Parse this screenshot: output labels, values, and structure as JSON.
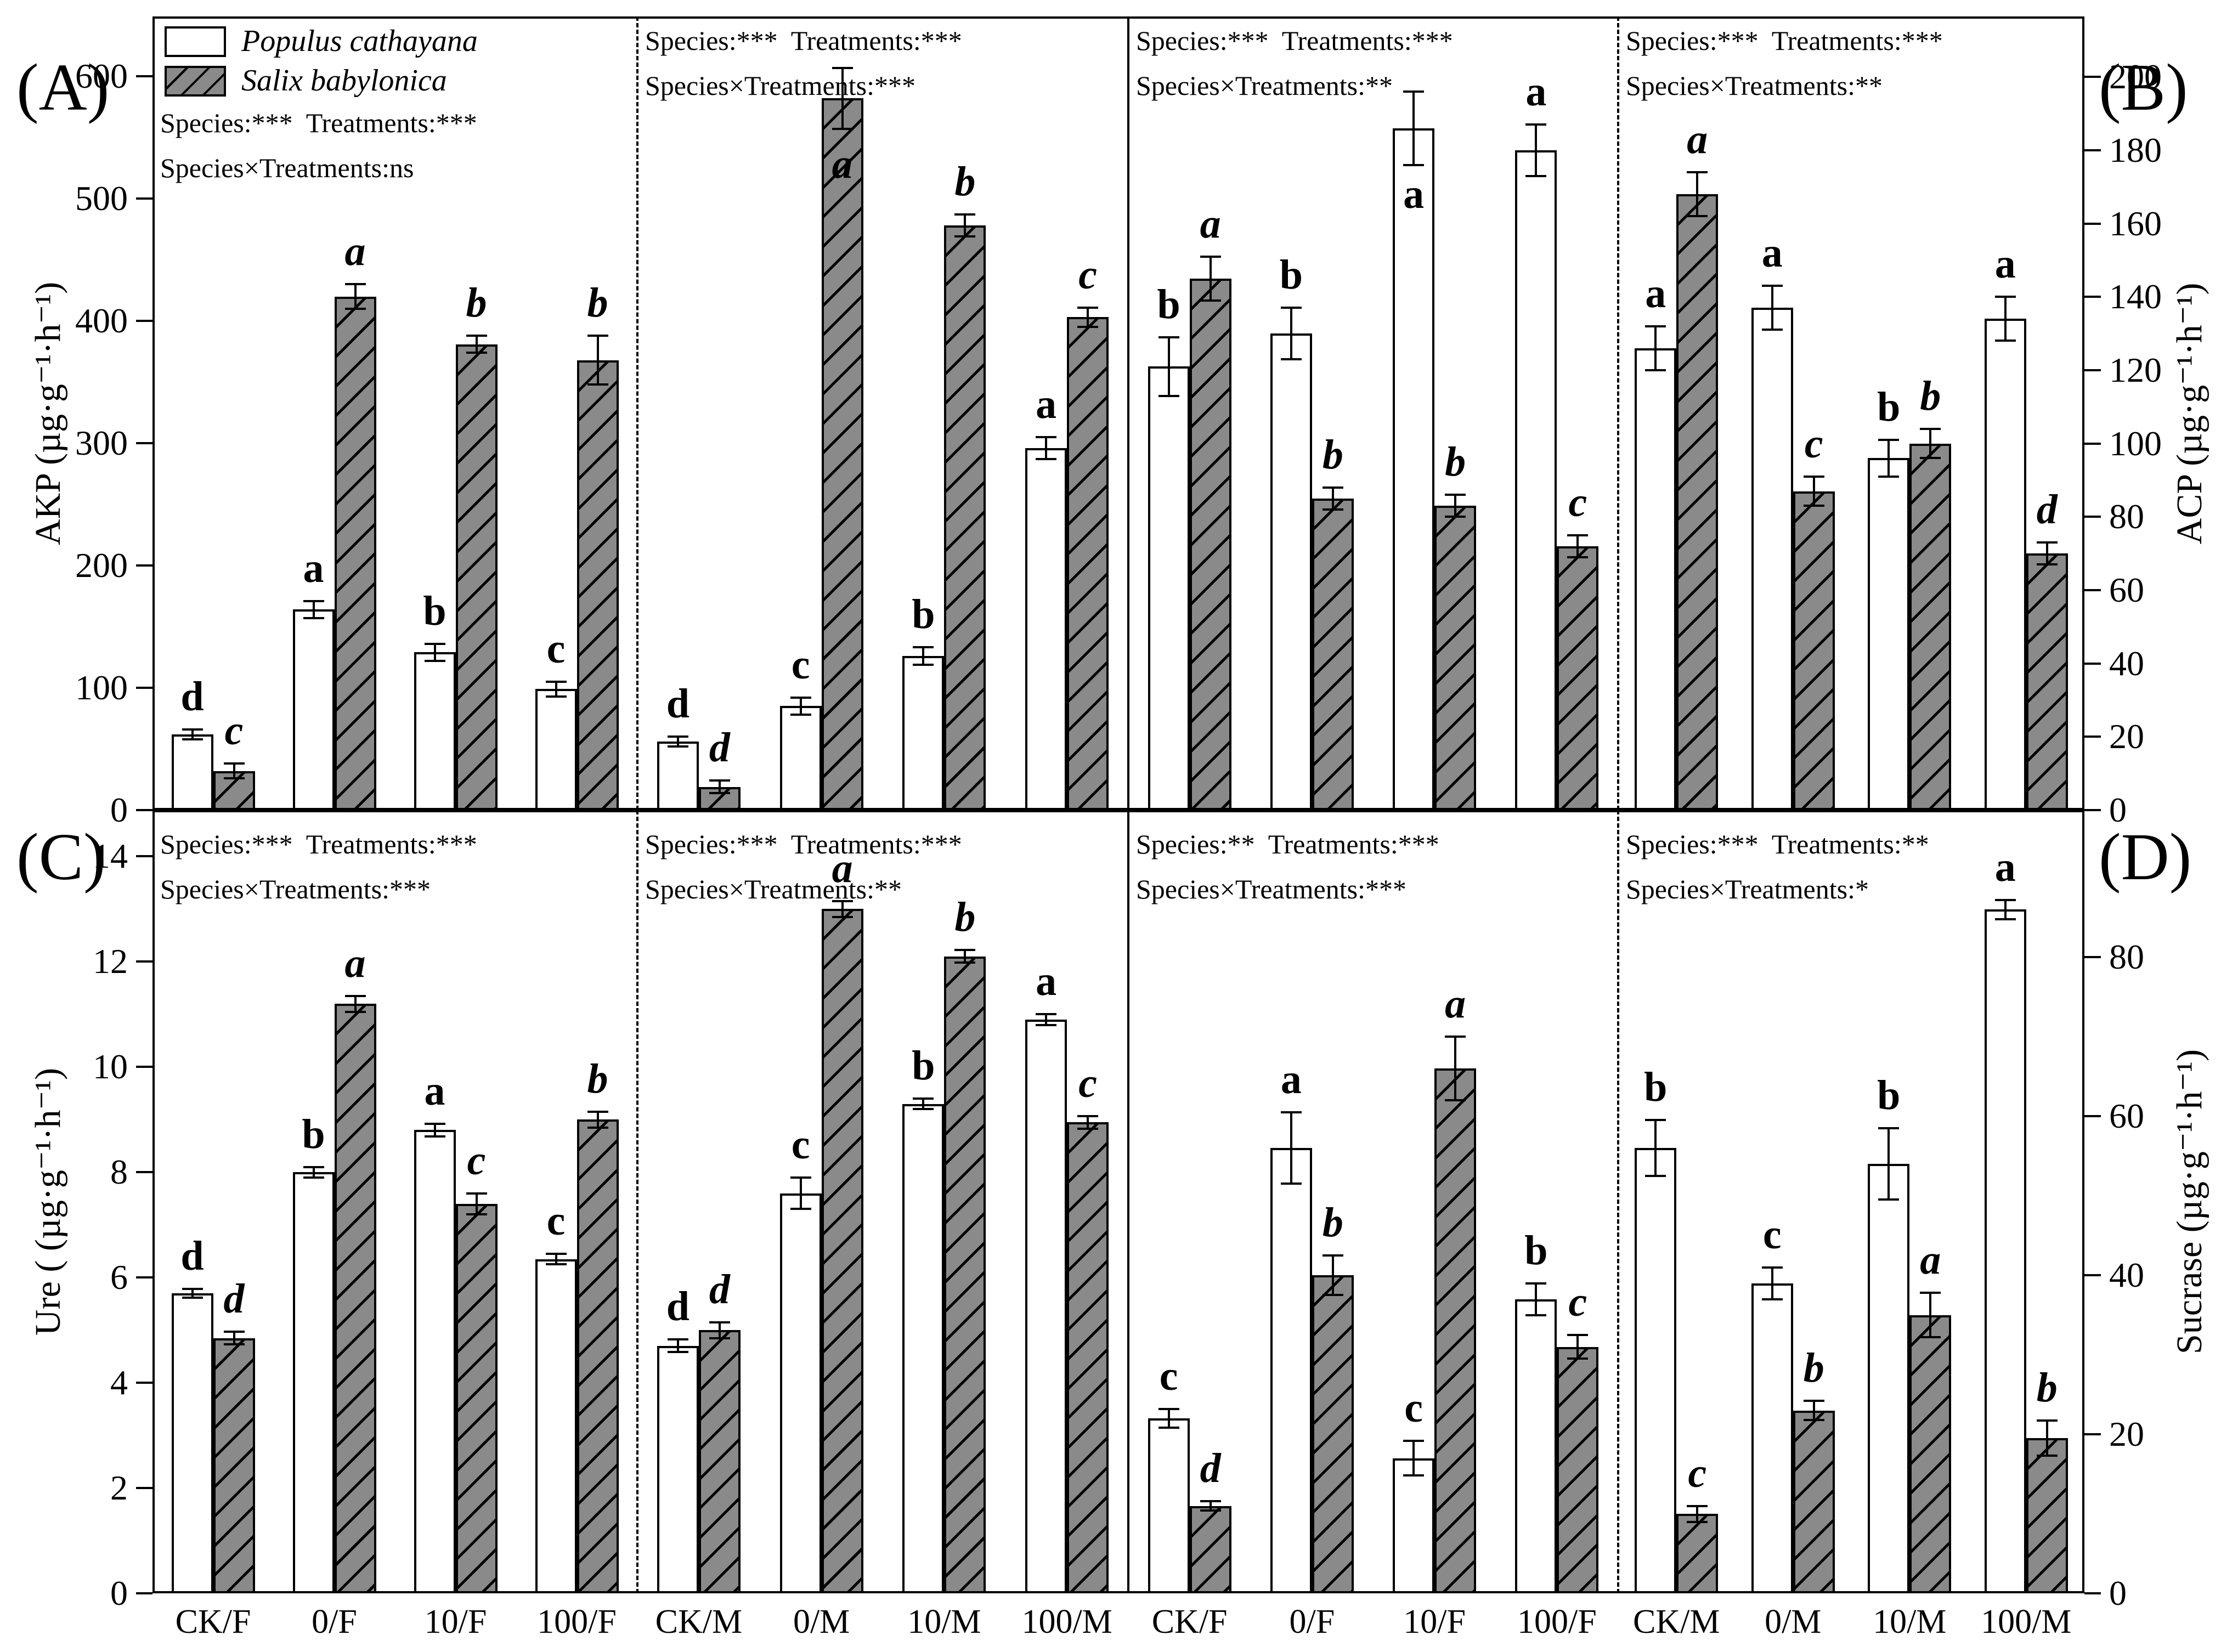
{
  "figure": {
    "background": "#ffffff",
    "bar_outline_color": "#000000",
    "populus_fill": "#ffffff",
    "salix_fill": "#8a8a8a",
    "hatch_line_color": "#000000"
  },
  "legend": {
    "entries": [
      {
        "label": "Populus cathayana",
        "swatch": "white"
      },
      {
        "label": "Salix babylonica",
        "swatch": "hatch"
      }
    ]
  },
  "panel_labels": [
    "(A)",
    "(B)",
    "(C)",
    "(D)"
  ],
  "chart_data": {
    "type": "bar",
    "series_names": [
      "Populus cathayana",
      "Salix babylonica"
    ],
    "panels": [
      {
        "id": "A",
        "row": 0,
        "col": 0,
        "axis": "left",
        "ylabel": "AKP (µg·g⁻¹·h⁻¹)",
        "ylim": [
          0,
          649
        ],
        "yticks": [
          0,
          100,
          200,
          300,
          400,
          500,
          600
        ],
        "quadrants": [
          {
            "stats_line1": "Species:***  Treatments:***",
            "stats_line2": "Species×Treatments:ns",
            "categories": [
              "CK/F",
              "0/F",
              "10/F",
              "100/F"
            ],
            "series": [
              {
                "name": "Populus cathayana",
                "values": [
                  62,
                  164,
                  129,
                  99
                ],
                "errors": [
                  4,
                  7,
                  7,
                  6
                ],
                "letters": [
                  "d",
                  "a",
                  "b",
                  "c"
                ]
              },
              {
                "name": "Salix babylonica",
                "values": [
                  32,
                  420,
                  381,
                  368
                ],
                "errors": [
                  6,
                  10,
                  7,
                  20
                ],
                "letters": [
                  "c",
                  "a",
                  "b",
                  "b"
                ]
              }
            ]
          },
          {
            "stats_line1": "Species:***  Treatments:***",
            "stats_line2": "Species×Treatments:***",
            "categories": [
              "CK/M",
              "0/M",
              "10/M",
              "100/M"
            ],
            "series": [
              {
                "name": "Populus cathayana",
                "values": [
                  56,
                  85,
                  126,
                  296
                ],
                "errors": [
                  4,
                  7,
                  7,
                  9
                ],
                "letters": [
                  "d",
                  "c",
                  "b",
                  "a"
                ]
              },
              {
                "name": "Salix babylonica",
                "values": [
                  19,
                  582,
                  478,
                  403
                ],
                "errors": [
                  5,
                  25,
                  9,
                  8
                ],
                "letters": [
                  "d",
                  "a",
                  "b",
                  "c"
                ],
                "letter_inside": [
                  false,
                  true,
                  false,
                  false
                ]
              }
            ]
          }
        ]
      },
      {
        "id": "B",
        "row": 0,
        "col": 1,
        "axis": "right",
        "ylabel": "ACP (µg·g⁻¹·h⁻¹)",
        "ylim": [
          0,
          216.5
        ],
        "yticks": [
          0,
          20,
          40,
          60,
          80,
          100,
          120,
          140,
          160,
          180,
          200
        ],
        "quadrants": [
          {
            "stats_line1": "Species:***  Treatments:***",
            "stats_line2": "Species×Treatments:**",
            "categories": [
              "CK/F",
              "0/F",
              "10/F",
              "100/F"
            ],
            "series": [
              {
                "name": "Populus cathayana",
                "values": [
                  121,
                  130,
                  186,
                  180
                ],
                "errors": [
                  8,
                  7,
                  10,
                  7
                ],
                "letters": [
                  "b",
                  "b",
                  "a",
                  "a"
                ],
                "letter_inside": [
                  false,
                  false,
                  true,
                  false
                ]
              },
              {
                "name": "Salix babylonica",
                "values": [
                  145,
                  85,
                  83,
                  72
                ],
                "errors": [
                  6,
                  3,
                  3,
                  3
                ],
                "letters": [
                  "a",
                  "b",
                  "b",
                  "c"
                ]
              }
            ]
          },
          {
            "stats_line1": "Species:***  Treatments:***",
            "stats_line2": "Species×Treatments:**",
            "categories": [
              "CK/M",
              "0/M",
              "10/M",
              "100/M"
            ],
            "series": [
              {
                "name": "Populus cathayana",
                "values": [
                  126,
                  137,
                  96,
                  134
                ],
                "errors": [
                  6,
                  6,
                  5,
                  6
                ],
                "letters": [
                  "a",
                  "a",
                  "b",
                  "a"
                ]
              },
              {
                "name": "Salix babylonica",
                "values": [
                  168,
                  87,
                  100,
                  70
                ],
                "errors": [
                  6,
                  4,
                  4,
                  3
                ],
                "letters": [
                  "a",
                  "c",
                  "b",
                  "d"
                ]
              }
            ]
          }
        ]
      },
      {
        "id": "C",
        "row": 1,
        "col": 0,
        "axis": "left",
        "ylabel": "Ure ( (µg·g⁻¹·h⁻¹)",
        "ylim": [
          0,
          14.88
        ],
        "yticks": [
          0,
          2,
          4,
          6,
          8,
          10,
          12,
          14
        ],
        "quadrants": [
          {
            "stats_line1": "Species:***  Treatments:***",
            "stats_line2": "Species×Treatments:***",
            "categories": [
              "CK/F",
              "0/F",
              "10/F",
              "100/F"
            ],
            "series": [
              {
                "name": "Populus cathayana",
                "values": [
                  5.7,
                  8.0,
                  8.8,
                  6.35
                ],
                "errors": [
                  0.08,
                  0.1,
                  0.12,
                  0.1
                ],
                "letters": [
                  "d",
                  "b",
                  "a",
                  "c"
                ]
              },
              {
                "name": "Salix babylonica",
                "values": [
                  4.85,
                  11.2,
                  7.4,
                  9.0
                ],
                "errors": [
                  0.12,
                  0.15,
                  0.2,
                  0.15
                ],
                "letters": [
                  "d",
                  "a",
                  "c",
                  "b"
                ]
              }
            ]
          },
          {
            "stats_line1": "Species:***  Treatments:***",
            "stats_line2": "Species×Treatments:**",
            "categories": [
              "CK/M",
              "0/M",
              "10/M",
              "100/M"
            ],
            "series": [
              {
                "name": "Populus cathayana",
                "values": [
                  4.7,
                  7.6,
                  9.3,
                  10.9
                ],
                "errors": [
                  0.12,
                  0.3,
                  0.1,
                  0.1
                ],
                "letters": [
                  "d",
                  "c",
                  "b",
                  "a"
                ]
              },
              {
                "name": "Salix babylonica",
                "values": [
                  5.0,
                  13.0,
                  12.1,
                  8.95
                ],
                "errors": [
                  0.15,
                  0.15,
                  0.12,
                  0.12
                ],
                "letters": [
                  "d",
                  "a",
                  "b",
                  "c"
                ]
              }
            ]
          }
        ]
      },
      {
        "id": "D",
        "row": 1,
        "col": 1,
        "axis": "right",
        "ylabel": "Sucrase (µg·g⁻¹·h⁻¹)",
        "ylim": [
          0,
          98.5
        ],
        "yticks": [
          0,
          20,
          40,
          60,
          80
        ],
        "quadrants": [
          {
            "stats_line1": "Species:**  Treatments:***",
            "stats_line2": "Species×Treatments:***",
            "categories": [
              "CK/F",
              "0/F",
              "10/F",
              "100/F"
            ],
            "series": [
              {
                "name": "Populus cathayana",
                "values": [
                  22,
                  56,
                  17,
                  37
                ],
                "errors": [
                  1.2,
                  4.5,
                  2.2,
                  2.0
                ],
                "letters": [
                  "c",
                  "a",
                  "c",
                  "b"
                ]
              },
              {
                "name": "Salix babylonica",
                "values": [
                  11,
                  40,
                  66,
                  31
                ],
                "errors": [
                  0.6,
                  2.5,
                  4.0,
                  1.5
                ],
                "letters": [
                  "d",
                  "b",
                  "a",
                  "c"
                ]
              }
            ]
          },
          {
            "stats_line1": "Species:***  Treatments:**",
            "stats_line2": "Species×Treatments:*",
            "categories": [
              "CK/M",
              "0/M",
              "10/M",
              "100/M"
            ],
            "series": [
              {
                "name": "Populus cathayana",
                "values": [
                  56,
                  39,
                  54,
                  86
                ],
                "errors": [
                  3.5,
                  2.0,
                  4.5,
                  1.2
                ],
                "letters": [
                  "b",
                  "c",
                  "b",
                  "a"
                ]
              },
              {
                "name": "Salix babylonica",
                "values": [
                  10,
                  23,
                  35,
                  19.5
                ],
                "errors": [
                  1.0,
                  1.2,
                  2.8,
                  2.2
                ],
                "letters": [
                  "c",
                  "b",
                  "a",
                  "b"
                ]
              }
            ]
          }
        ]
      }
    ]
  }
}
